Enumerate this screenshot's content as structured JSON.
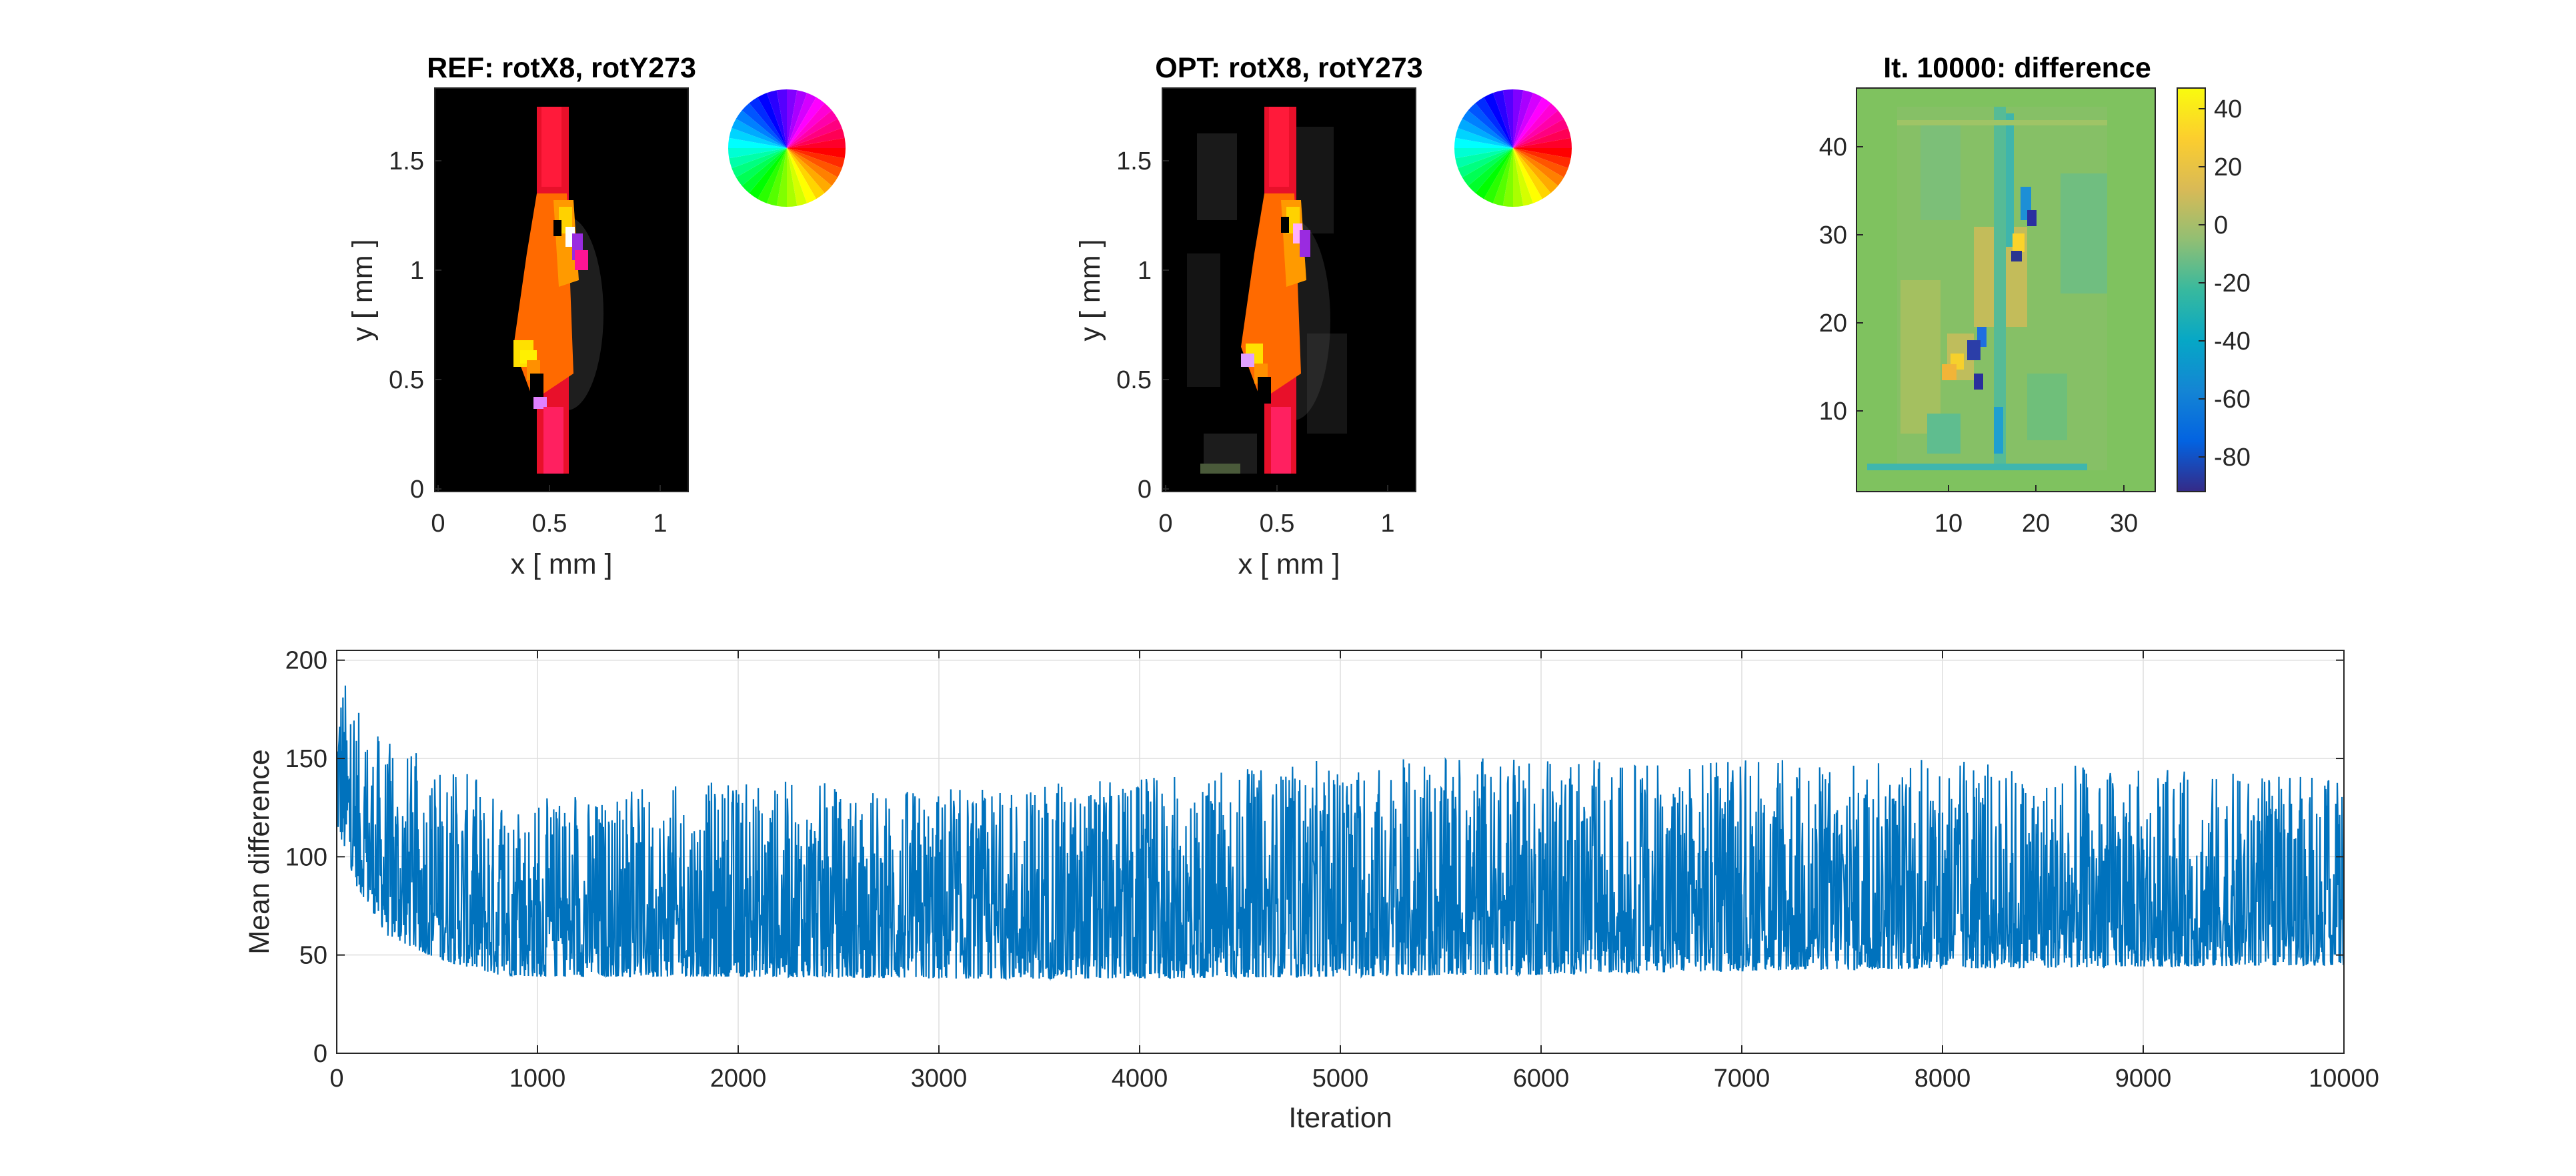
{
  "figure": {
    "panels": {
      "ref": {
        "title": "REF: rotX8, rotY273",
        "xlabel": "x [ mm ]",
        "ylabel": "y [ mm ]",
        "xticks": [
          "0",
          "0.5",
          "1"
        ],
        "yticks": [
          "0",
          "0.5",
          "1",
          "1.5"
        ]
      },
      "opt": {
        "title": "OPT: rotX8, rotY273",
        "xlabel": "x [ mm ]",
        "ylabel": "y [ mm ]",
        "xticks": [
          "0",
          "0.5",
          "1"
        ],
        "yticks": [
          "0",
          "0.5",
          "1",
          "1.5"
        ]
      },
      "diff": {
        "title": "It. 10000: difference",
        "xticks": [
          "10",
          "20",
          "30"
        ],
        "yticks": [
          "10",
          "20",
          "30",
          "40"
        ],
        "colorbar_ticks": [
          "40",
          "20",
          "0",
          "-20",
          "-40",
          "-60",
          "-80"
        ]
      },
      "convergence": {
        "xlabel": "Iteration",
        "ylabel": "Mean difference"
      }
    }
  },
  "chart_data": [
    {
      "type": "heatmap",
      "title": "REF: rotX8, rotY273",
      "xlabel": "x [ mm ]",
      "ylabel": "y [ mm ]",
      "xlim": [
        0,
        1.15
      ],
      "ylim": [
        0,
        1.85
      ],
      "colormap": "hsv direction wheel",
      "background": "#000000"
    },
    {
      "type": "heatmap",
      "title": "OPT: rotX8, rotY273",
      "xlabel": "x [ mm ]",
      "ylabel": "y [ mm ]",
      "xlim": [
        0,
        1.15
      ],
      "ylim": [
        0,
        1.85
      ],
      "colormap": "hsv direction wheel",
      "background": "#000000"
    },
    {
      "type": "heatmap",
      "title": "It. 10000: difference",
      "xlim": [
        0.5,
        34.5
      ],
      "ylim": [
        0.5,
        46.5
      ],
      "clim": [
        -92,
        47
      ],
      "colormap": "parula",
      "background_value": 0
    },
    {
      "type": "line",
      "xlabel": "Iteration",
      "ylabel": "Mean difference",
      "xlim": [
        0,
        10000
      ],
      "ylim": [
        0,
        205
      ],
      "xticks": [
        0,
        1000,
        2000,
        3000,
        4000,
        5000,
        6000,
        7000,
        8000,
        9000,
        10000
      ],
      "yticks": [
        0,
        50,
        100,
        150,
        200
      ],
      "grid": true,
      "series_color": "#0072BD",
      "envelope": [
        {
          "iteration": 0,
          "low": 115,
          "high": 205
        },
        {
          "iteration": 100,
          "low": 85,
          "high": 175
        },
        {
          "iteration": 250,
          "low": 60,
          "high": 160
        },
        {
          "iteration": 500,
          "low": 48,
          "high": 150
        },
        {
          "iteration": 800,
          "low": 40,
          "high": 135
        },
        {
          "iteration": 1000,
          "low": 39,
          "high": 130
        },
        {
          "iteration": 2000,
          "low": 39,
          "high": 140
        },
        {
          "iteration": 3000,
          "low": 38,
          "high": 135
        },
        {
          "iteration": 4000,
          "low": 38,
          "high": 140
        },
        {
          "iteration": 5000,
          "low": 39,
          "high": 150
        },
        {
          "iteration": 6000,
          "low": 40,
          "high": 150
        },
        {
          "iteration": 7000,
          "low": 42,
          "high": 150
        },
        {
          "iteration": 8000,
          "low": 43,
          "high": 150
        },
        {
          "iteration": 9000,
          "low": 44,
          "high": 145
        },
        {
          "iteration": 10000,
          "low": 45,
          "high": 140
        }
      ]
    }
  ]
}
